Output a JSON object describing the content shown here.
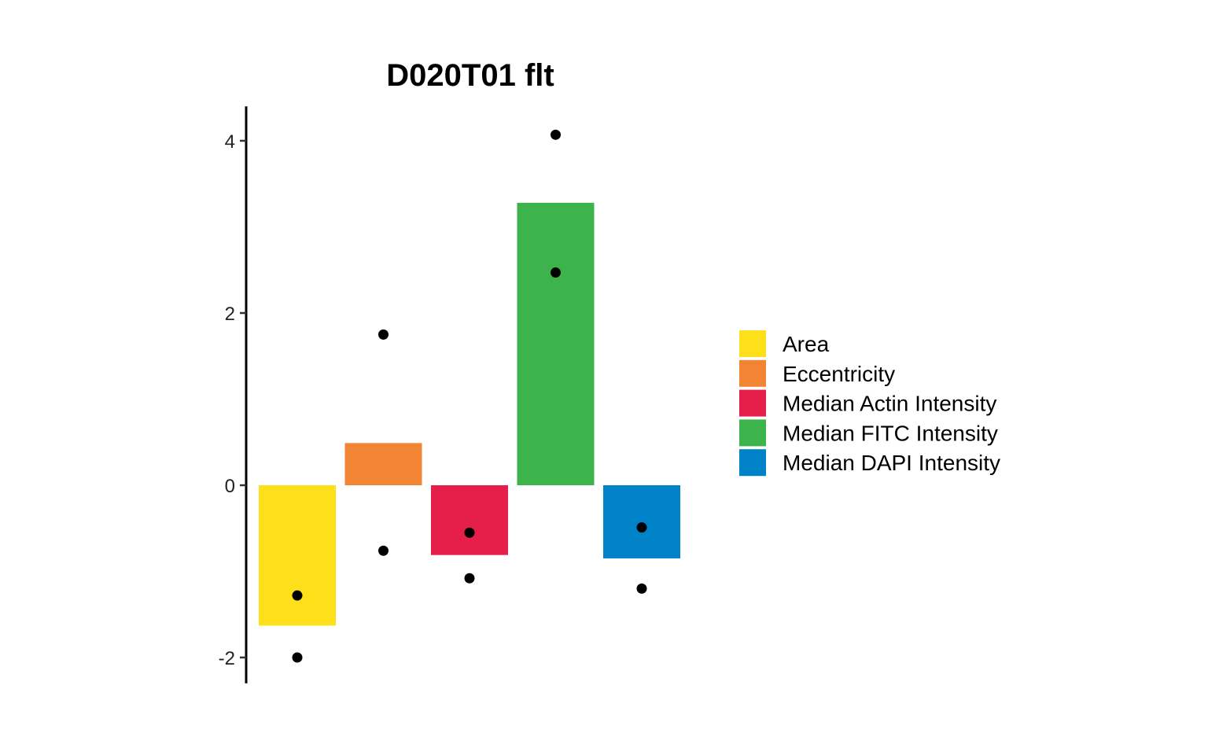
{
  "chart_data": {
    "type": "bar",
    "title": "D020T01 flt",
    "xlabel": "",
    "ylabel": "",
    "ylim": [
      -2.3,
      4.4
    ],
    "y_ticks": [
      -2,
      0,
      2,
      4
    ],
    "y_tick_labels": [
      "-2",
      "0",
      "2",
      "4"
    ],
    "grid": false,
    "legend_position": "right",
    "categories": [
      "Area",
      "Eccentricity",
      "Median Actin Intensity",
      "Median FITC Intensity",
      "Median DAPI Intensity"
    ],
    "values": [
      -1.63,
      0.49,
      -0.81,
      3.28,
      -0.85
    ],
    "colors": [
      "#FDE01A",
      "#F28534",
      "#E51E4A",
      "#3CB34B",
      "#0082C8"
    ],
    "points": [
      {
        "category": "Area",
        "values": [
          -1.28,
          -2.0
        ]
      },
      {
        "category": "Eccentricity",
        "values": [
          1.75,
          -0.76
        ]
      },
      {
        "category": "Median Actin Intensity",
        "values": [
          -0.55,
          -1.08
        ]
      },
      {
        "category": "Median FITC Intensity",
        "values": [
          4.07,
          2.47
        ]
      },
      {
        "category": "Median DAPI Intensity",
        "values": [
          -0.49,
          -1.2
        ]
      }
    ],
    "point_color": "#000000"
  }
}
